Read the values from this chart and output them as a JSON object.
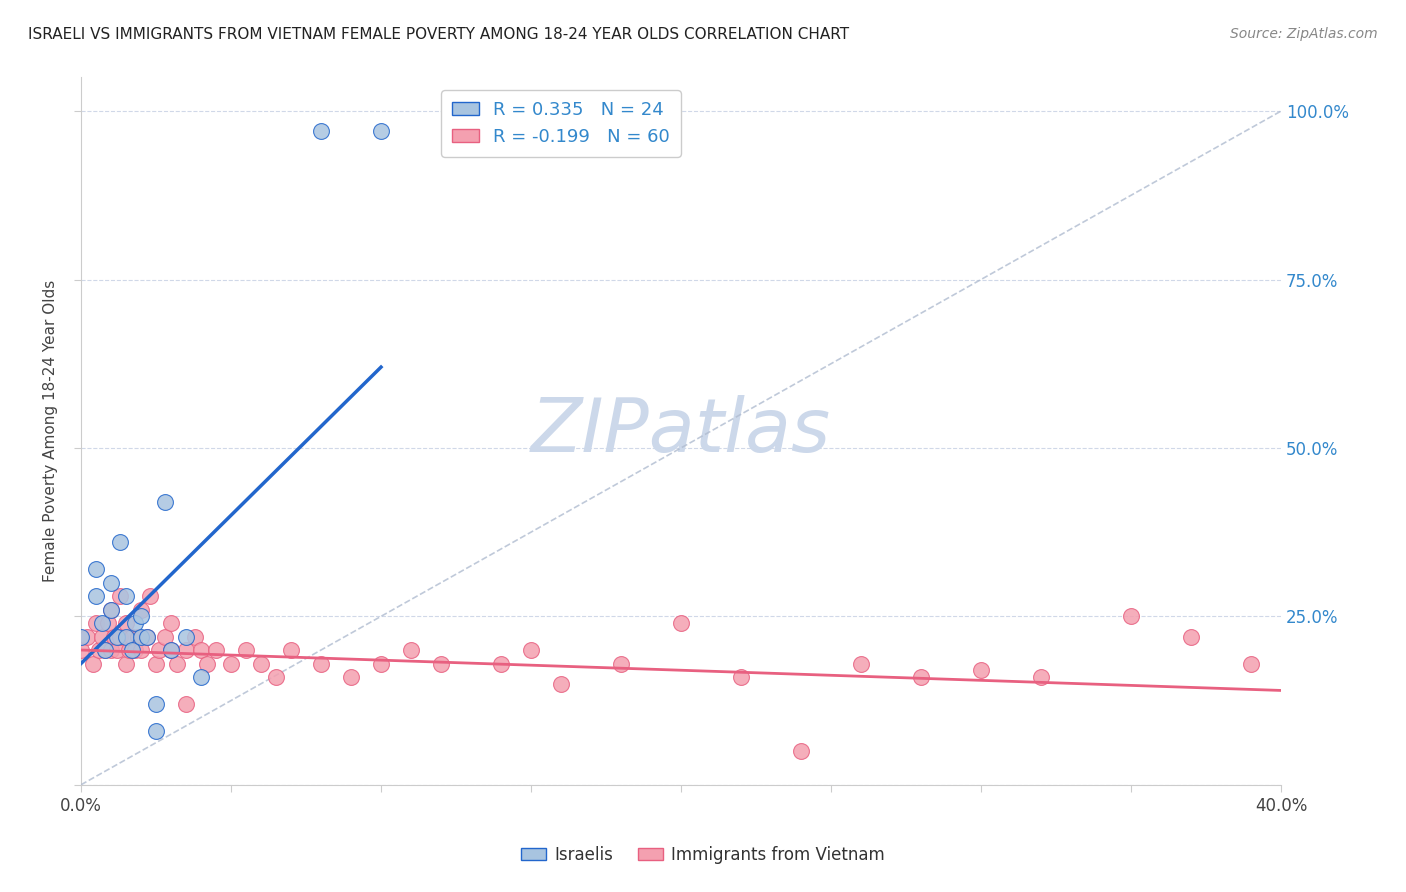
{
  "title": "ISRAELI VS IMMIGRANTS FROM VIETNAM FEMALE POVERTY AMONG 18-24 YEAR OLDS CORRELATION CHART",
  "source": "Source: ZipAtlas.com",
  "ylabel": "Female Poverty Among 18-24 Year Olds",
  "xlim": [
    0.0,
    0.4
  ],
  "ylim": [
    0.0,
    1.05
  ],
  "blue_color": "#a8c4e0",
  "pink_color": "#f4a0b0",
  "blue_line_color": "#2266cc",
  "pink_line_color": "#e86080",
  "watermark": "ZIPatlas",
  "watermark_color": "#ccd8ea",
  "legend_r_blue": "0.335",
  "legend_n_blue": "24",
  "legend_r_pink": "-0.199",
  "legend_n_pink": "60",
  "israelis_x": [
    0.0,
    0.005,
    0.005,
    0.007,
    0.008,
    0.01,
    0.01,
    0.012,
    0.013,
    0.015,
    0.015,
    0.017,
    0.018,
    0.02,
    0.02,
    0.022,
    0.025,
    0.025,
    0.028,
    0.03,
    0.035,
    0.04,
    0.08,
    0.1
  ],
  "israelis_y": [
    0.22,
    0.32,
    0.28,
    0.24,
    0.2,
    0.26,
    0.3,
    0.22,
    0.36,
    0.22,
    0.28,
    0.2,
    0.24,
    0.22,
    0.25,
    0.22,
    0.12,
    0.08,
    0.42,
    0.2,
    0.22,
    0.16,
    0.97,
    0.97
  ],
  "vietnam_x": [
    0.0,
    0.002,
    0.004,
    0.005,
    0.006,
    0.007,
    0.008,
    0.009,
    0.01,
    0.01,
    0.011,
    0.012,
    0.013,
    0.013,
    0.015,
    0.015,
    0.016,
    0.017,
    0.018,
    0.019,
    0.02,
    0.02,
    0.022,
    0.023,
    0.025,
    0.026,
    0.028,
    0.03,
    0.03,
    0.032,
    0.035,
    0.035,
    0.038,
    0.04,
    0.042,
    0.045,
    0.05,
    0.055,
    0.06,
    0.065,
    0.07,
    0.08,
    0.09,
    0.1,
    0.11,
    0.12,
    0.14,
    0.15,
    0.16,
    0.18,
    0.2,
    0.22,
    0.24,
    0.26,
    0.28,
    0.3,
    0.32,
    0.35,
    0.37,
    0.39
  ],
  "vietnam_y": [
    0.2,
    0.22,
    0.18,
    0.24,
    0.2,
    0.22,
    0.2,
    0.24,
    0.2,
    0.26,
    0.22,
    0.2,
    0.22,
    0.28,
    0.18,
    0.24,
    0.2,
    0.22,
    0.2,
    0.22,
    0.26,
    0.2,
    0.22,
    0.28,
    0.18,
    0.2,
    0.22,
    0.2,
    0.24,
    0.18,
    0.2,
    0.12,
    0.22,
    0.2,
    0.18,
    0.2,
    0.18,
    0.2,
    0.18,
    0.16,
    0.2,
    0.18,
    0.16,
    0.18,
    0.2,
    0.18,
    0.18,
    0.2,
    0.15,
    0.18,
    0.24,
    0.16,
    0.05,
    0.18,
    0.16,
    0.17,
    0.16,
    0.25,
    0.22,
    0.18
  ],
  "blue_trend_x": [
    0.0,
    0.1
  ],
  "blue_trend_y": [
    0.18,
    0.62
  ],
  "pink_trend_x": [
    0.0,
    0.4
  ],
  "pink_trend_y": [
    0.2,
    0.14
  ]
}
